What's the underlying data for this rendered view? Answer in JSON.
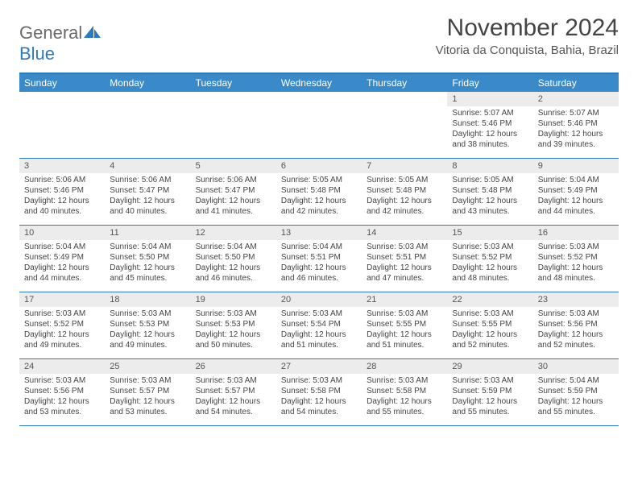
{
  "logo": {
    "word1": "General",
    "word2": "Blue"
  },
  "title": "November 2024",
  "subtitle": "Vitoria da Conquista, Bahia, Brazil",
  "colors": {
    "header_bg": "#3a89c9",
    "border": "#2b7bbd",
    "daynum_bg": "#ececec",
    "text": "#444444",
    "logo_gray": "#6a6a6a",
    "logo_blue": "#2b7bbd"
  },
  "dow": [
    "Sunday",
    "Monday",
    "Tuesday",
    "Wednesday",
    "Thursday",
    "Friday",
    "Saturday"
  ],
  "weeks": [
    [
      null,
      null,
      null,
      null,
      null,
      {
        "n": "1",
        "sr": "5:07 AM",
        "ss": "5:46 PM",
        "dl": "12 hours and 38 minutes."
      },
      {
        "n": "2",
        "sr": "5:07 AM",
        "ss": "5:46 PM",
        "dl": "12 hours and 39 minutes."
      }
    ],
    [
      {
        "n": "3",
        "sr": "5:06 AM",
        "ss": "5:46 PM",
        "dl": "12 hours and 40 minutes."
      },
      {
        "n": "4",
        "sr": "5:06 AM",
        "ss": "5:47 PM",
        "dl": "12 hours and 40 minutes."
      },
      {
        "n": "5",
        "sr": "5:06 AM",
        "ss": "5:47 PM",
        "dl": "12 hours and 41 minutes."
      },
      {
        "n": "6",
        "sr": "5:05 AM",
        "ss": "5:48 PM",
        "dl": "12 hours and 42 minutes."
      },
      {
        "n": "7",
        "sr": "5:05 AM",
        "ss": "5:48 PM",
        "dl": "12 hours and 42 minutes."
      },
      {
        "n": "8",
        "sr": "5:05 AM",
        "ss": "5:48 PM",
        "dl": "12 hours and 43 minutes."
      },
      {
        "n": "9",
        "sr": "5:04 AM",
        "ss": "5:49 PM",
        "dl": "12 hours and 44 minutes."
      }
    ],
    [
      {
        "n": "10",
        "sr": "5:04 AM",
        "ss": "5:49 PM",
        "dl": "12 hours and 44 minutes."
      },
      {
        "n": "11",
        "sr": "5:04 AM",
        "ss": "5:50 PM",
        "dl": "12 hours and 45 minutes."
      },
      {
        "n": "12",
        "sr": "5:04 AM",
        "ss": "5:50 PM",
        "dl": "12 hours and 46 minutes."
      },
      {
        "n": "13",
        "sr": "5:04 AM",
        "ss": "5:51 PM",
        "dl": "12 hours and 46 minutes."
      },
      {
        "n": "14",
        "sr": "5:03 AM",
        "ss": "5:51 PM",
        "dl": "12 hours and 47 minutes."
      },
      {
        "n": "15",
        "sr": "5:03 AM",
        "ss": "5:52 PM",
        "dl": "12 hours and 48 minutes."
      },
      {
        "n": "16",
        "sr": "5:03 AM",
        "ss": "5:52 PM",
        "dl": "12 hours and 48 minutes."
      }
    ],
    [
      {
        "n": "17",
        "sr": "5:03 AM",
        "ss": "5:52 PM",
        "dl": "12 hours and 49 minutes."
      },
      {
        "n": "18",
        "sr": "5:03 AM",
        "ss": "5:53 PM",
        "dl": "12 hours and 49 minutes."
      },
      {
        "n": "19",
        "sr": "5:03 AM",
        "ss": "5:53 PM",
        "dl": "12 hours and 50 minutes."
      },
      {
        "n": "20",
        "sr": "5:03 AM",
        "ss": "5:54 PM",
        "dl": "12 hours and 51 minutes."
      },
      {
        "n": "21",
        "sr": "5:03 AM",
        "ss": "5:55 PM",
        "dl": "12 hours and 51 minutes."
      },
      {
        "n": "22",
        "sr": "5:03 AM",
        "ss": "5:55 PM",
        "dl": "12 hours and 52 minutes."
      },
      {
        "n": "23",
        "sr": "5:03 AM",
        "ss": "5:56 PM",
        "dl": "12 hours and 52 minutes."
      }
    ],
    [
      {
        "n": "24",
        "sr": "5:03 AM",
        "ss": "5:56 PM",
        "dl": "12 hours and 53 minutes."
      },
      {
        "n": "25",
        "sr": "5:03 AM",
        "ss": "5:57 PM",
        "dl": "12 hours and 53 minutes."
      },
      {
        "n": "26",
        "sr": "5:03 AM",
        "ss": "5:57 PM",
        "dl": "12 hours and 54 minutes."
      },
      {
        "n": "27",
        "sr": "5:03 AM",
        "ss": "5:58 PM",
        "dl": "12 hours and 54 minutes."
      },
      {
        "n": "28",
        "sr": "5:03 AM",
        "ss": "5:58 PM",
        "dl": "12 hours and 55 minutes."
      },
      {
        "n": "29",
        "sr": "5:03 AM",
        "ss": "5:59 PM",
        "dl": "12 hours and 55 minutes."
      },
      {
        "n": "30",
        "sr": "5:04 AM",
        "ss": "5:59 PM",
        "dl": "12 hours and 55 minutes."
      }
    ]
  ],
  "labels": {
    "sunrise": "Sunrise:",
    "sunset": "Sunset:",
    "daylight": "Daylight:"
  }
}
